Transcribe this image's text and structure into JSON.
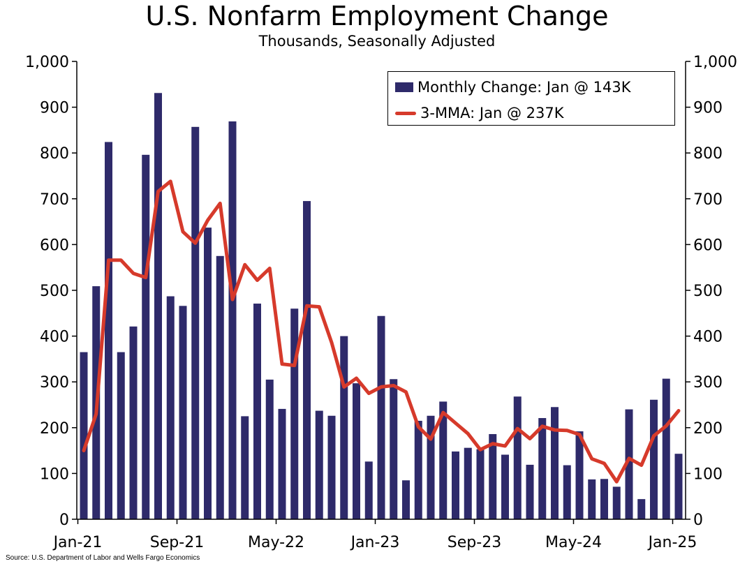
{
  "title": "U.S. Nonfarm Employment Change",
  "subtitle": "Thousands, Seasonally Adjusted",
  "source": "Source: U.S. Department of Labor and Wells Fargo Economics",
  "colors": {
    "bar": "#2e2a6a",
    "line": "#d63a2b",
    "axis": "#000000"
  },
  "legend": {
    "bar_label": "Monthly Change: Jan @ 143K",
    "line_label": "3-MMA: Jan @ 237K",
    "placement": "top-right"
  },
  "chart_data": {
    "type": "bar+line",
    "ylim": [
      0,
      1000
    ],
    "yticks": [
      "0",
      "100",
      "200",
      "300",
      "400",
      "500",
      "600",
      "700",
      "800",
      "900",
      "1,000"
    ],
    "xtick_labels": [
      "Jan-21",
      "Sep-21",
      "May-22",
      "Jan-23",
      "Sep-23",
      "May-24",
      "Jan-25"
    ],
    "categories": [
      "Jan-21",
      "Feb-21",
      "Mar-21",
      "Apr-21",
      "May-21",
      "Jun-21",
      "Jul-21",
      "Aug-21",
      "Sep-21",
      "Oct-21",
      "Nov-21",
      "Dec-21",
      "Jan-22",
      "Feb-22",
      "Mar-22",
      "Apr-22",
      "May-22",
      "Jun-22",
      "Jul-22",
      "Aug-22",
      "Sep-22",
      "Oct-22",
      "Nov-22",
      "Dec-22",
      "Jan-23",
      "Feb-23",
      "Mar-23",
      "Apr-23",
      "May-23",
      "Jun-23",
      "Jul-23",
      "Aug-23",
      "Sep-23",
      "Oct-23",
      "Nov-23",
      "Dec-23",
      "Jan-24",
      "Feb-24",
      "Mar-24",
      "Apr-24",
      "May-24",
      "Jun-24",
      "Jul-24",
      "Aug-24",
      "Sep-24",
      "Oct-24",
      "Nov-24",
      "Dec-24",
      "Jan-25"
    ],
    "series": [
      {
        "name": "Monthly Change: Jan @ 143K",
        "type": "bar",
        "values": [
          365,
          509,
          824,
          365,
          421,
          796,
          931,
          487,
          466,
          857,
          637,
          575,
          869,
          225,
          471,
          305,
          241,
          460,
          695,
          237,
          226,
          400,
          297,
          126,
          444,
          306,
          85,
          215,
          226,
          257,
          148,
          156,
          153,
          186,
          141,
          268,
          119,
          221,
          245,
          118,
          192,
          87,
          88,
          71,
          240,
          44,
          261,
          307,
          143
        ]
      },
      {
        "name": "3-MMA: Jan @ 237K",
        "type": "line",
        "values": [
          150,
          230,
          566,
          566,
          537,
          528,
          716,
          738,
          628,
          603,
          653,
          690,
          480,
          556,
          522,
          548,
          339,
          336,
          466,
          464,
          386,
          289,
          308,
          275,
          289,
          292,
          278,
          202,
          175,
          233,
          210,
          187,
          152,
          165,
          160,
          198,
          176,
          203,
          195,
          194,
          185,
          132,
          122,
          82,
          133,
          118,
          182,
          204,
          237
        ]
      }
    ]
  }
}
